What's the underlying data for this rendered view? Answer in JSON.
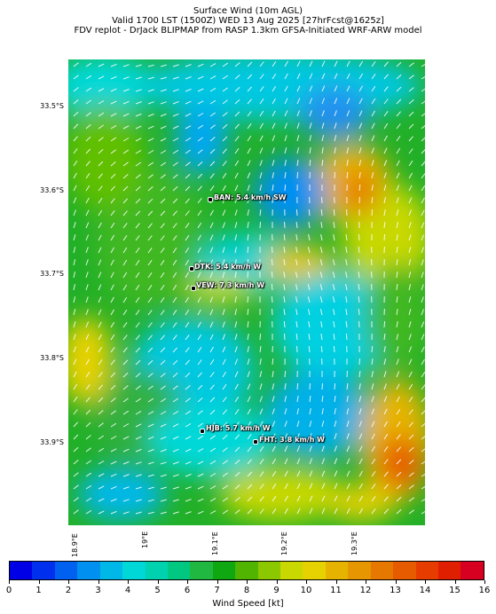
{
  "title": {
    "line1": "Surface Wind (10m AGL)",
    "line2": "Valid 1700 LST (1500Z) WED 13 Aug 2025 [27hrFcst@1625z]",
    "line3": "FDV replot - DrJack BLIPMAP from RASP 1.3km GFSA-Initiated WRF-ARW model"
  },
  "map": {
    "latitude_labels": [
      "33.5°S",
      "33.6°S",
      "33.7°S",
      "33.8°S",
      "33.9°S"
    ],
    "longitude_labels": [
      "18.9°E",
      "19°E",
      "19.1°E",
      "19.2°E",
      "19.3°E"
    ],
    "stations": [
      {
        "name": "BAN",
        "label": "BAN: 5.4 km/h SW",
        "speed_kmh": 5.4,
        "direction": "SW"
      },
      {
        "name": "DTK",
        "label": "DTK: 5.4 km/h W",
        "speed_kmh": 5.4,
        "direction": "W"
      },
      {
        "name": "VEW",
        "label": "VEW: 7.3 km/h W",
        "speed_kmh": 7.3,
        "direction": "W"
      },
      {
        "name": "HJB",
        "label": "HJB: 5.7 km/h W",
        "speed_kmh": 5.7,
        "direction": "W"
      },
      {
        "name": "FHT",
        "label": "FHT: 3.8 km/h W",
        "speed_kmh": 3.8,
        "direction": "W"
      }
    ]
  },
  "colorbar": {
    "label": "Wind Speed [kt]",
    "ticks": [
      "0",
      "1",
      "2",
      "3",
      "4",
      "5",
      "6",
      "7",
      "8",
      "9",
      "10",
      "11",
      "12",
      "13",
      "14",
      "15",
      "16"
    ],
    "colors": [
      "#0000e6",
      "#0030ee",
      "#0060f0",
      "#0090f0",
      "#00b8e8",
      "#00d8d8",
      "#00d2b0",
      "#00c880",
      "#20b840",
      "#10a810",
      "#50b400",
      "#8cc800",
      "#c8d800",
      "#e6d200",
      "#e6b400",
      "#e69600",
      "#e67800",
      "#e65a00",
      "#e63c00",
      "#e01e00",
      "#d80020"
    ]
  }
}
